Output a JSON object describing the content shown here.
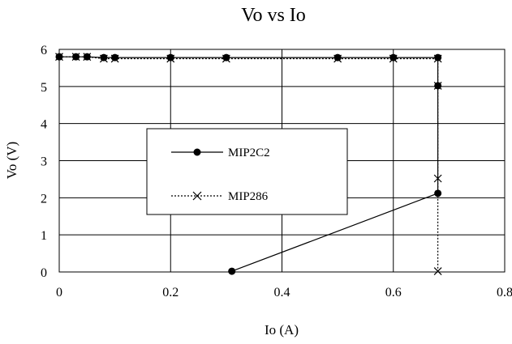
{
  "chart_data": {
    "type": "line",
    "title": "Vo vs Io",
    "xlabel": "Io (A)",
    "ylabel": "Vo (V)",
    "xlim": [
      0,
      0.8
    ],
    "ylim": [
      0,
      6
    ],
    "xticks": [
      0,
      0.2,
      0.4,
      0.6,
      0.8
    ],
    "xtick_labels": [
      "0",
      "0.2",
      "0.4",
      "0.6",
      "0.8"
    ],
    "yticks": [
      0,
      1,
      2,
      3,
      4,
      5,
      6
    ],
    "ytick_labels": [
      "0",
      "1",
      "2",
      "3",
      "4",
      "5",
      "6"
    ],
    "grid": true,
    "legend_position": "center-left",
    "series": [
      {
        "name": "MIP2C2",
        "marker": "circle",
        "line_style": "solid",
        "color": "#000000",
        "x": [
          0,
          0.03,
          0.05,
          0.08,
          0.1,
          0.2,
          0.3,
          0.5,
          0.6,
          0.68,
          0.68,
          0.68,
          0.31
        ],
        "y": [
          5.8,
          5.8,
          5.8,
          5.78,
          5.78,
          5.78,
          5.78,
          5.78,
          5.78,
          5.78,
          5.02,
          2.12,
          0.02
        ]
      },
      {
        "name": "MIP286",
        "marker": "x",
        "line_style": "dotted",
        "color": "#000000",
        "x": [
          0,
          0.03,
          0.05,
          0.08,
          0.1,
          0.2,
          0.3,
          0.5,
          0.6,
          0.68,
          0.68,
          0.68,
          0.68
        ],
        "y": [
          5.8,
          5.8,
          5.8,
          5.75,
          5.75,
          5.75,
          5.75,
          5.75,
          5.75,
          5.75,
          5.02,
          2.52,
          0.02
        ]
      }
    ]
  }
}
